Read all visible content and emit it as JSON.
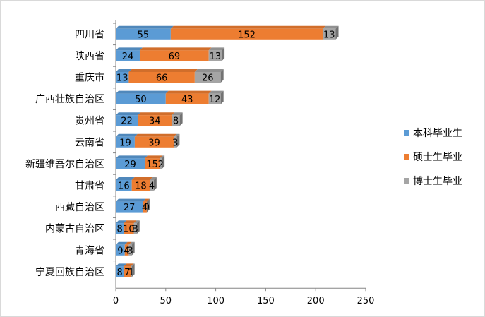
{
  "chart_data": {
    "type": "bar",
    "orientation": "horizontal",
    "stacked": true,
    "categories": [
      "四川省",
      "陕西省",
      "重庆市",
      "广西壮族自治区",
      "贵州省",
      "云南省",
      "新疆维吾尔自治区",
      "甘肃省",
      "西藏自治区",
      "内蒙古自治区",
      "青海省",
      "宁夏回族自治区"
    ],
    "series": [
      {
        "name": "本科毕业生",
        "color": "#5b9bd5",
        "values": [
          55,
          24,
          13,
          50,
          22,
          19,
          29,
          16,
          27,
          8,
          9,
          8
        ]
      },
      {
        "name": "硕士生毕业",
        "color": "#ed7d31",
        "values": [
          152,
          69,
          66,
          43,
          34,
          39,
          15,
          18,
          4,
          10,
          4,
          7
        ]
      },
      {
        "name": "博士生毕业",
        "color": "#a5a5a5",
        "values": [
          13,
          13,
          26,
          12,
          8,
          3,
          2,
          4,
          0,
          3,
          3,
          1
        ]
      }
    ],
    "data_labels": [
      [
        "55",
        "152",
        "13"
      ],
      [
        "24",
        "69",
        "13"
      ],
      [
        "13",
        "66",
        "26"
      ],
      [
        "50",
        "43",
        "12"
      ],
      [
        "22",
        "34",
        "8"
      ],
      [
        "19",
        "39",
        "3"
      ],
      [
        "29",
        "15",
        "2"
      ],
      [
        "16",
        "18",
        "4"
      ],
      [
        "27",
        "4",
        "0"
      ],
      [
        "8",
        "10",
        "3"
      ],
      [
        "9",
        "4",
        "3"
      ],
      [
        "8",
        "7",
        "1"
      ]
    ],
    "xlim": [
      0,
      250
    ],
    "xticks": [
      "0",
      "50",
      "100",
      "150",
      "200",
      "250"
    ],
    "grid": false,
    "legend_position": "right"
  }
}
